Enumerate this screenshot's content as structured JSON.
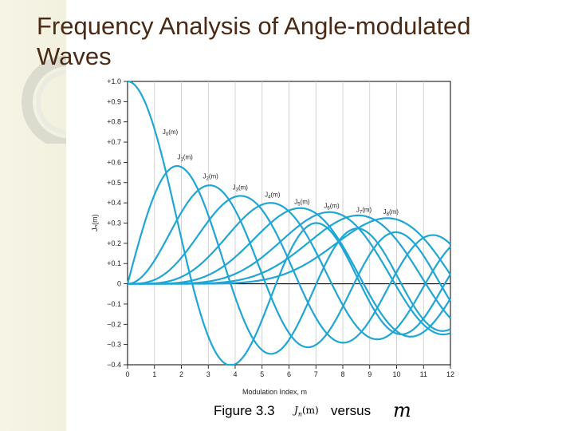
{
  "slide": {
    "title": "Frequency Analysis of Angle-modulated Waves",
    "caption": {
      "figure_label": "Figure 3.3",
      "math_term": "J",
      "math_sub": "n",
      "math_arg": "(m)",
      "versus": "versus",
      "math_var": "m"
    }
  },
  "colors": {
    "curve": "#1fa6d4",
    "title": "#4a2a14",
    "ring": "#d9d8cc",
    "background_strip": "#f3f1e0"
  },
  "chart_data": {
    "type": "line",
    "xlabel": "Modulation Index, m",
    "ylabel": "Jₙ(m)",
    "xlim": [
      0,
      12
    ],
    "ylim": [
      -0.4,
      1.0
    ],
    "x_ticks": [
      "0",
      "1",
      "2",
      "3",
      "4",
      "5",
      "6",
      "7",
      "8",
      "9",
      "10",
      "11",
      "12"
    ],
    "y_ticks": [
      {
        "v": 1.0,
        "label": "+1.0"
      },
      {
        "v": 0.9,
        "label": "+0.9"
      },
      {
        "v": 0.8,
        "label": "+0.8"
      },
      {
        "v": 0.7,
        "label": "+0.7"
      },
      {
        "v": 0.6,
        "label": "+0.6"
      },
      {
        "v": 0.5,
        "label": "+0.5"
      },
      {
        "v": 0.4,
        "label": "+0.4"
      },
      {
        "v": 0.3,
        "label": "+0.3"
      },
      {
        "v": 0.2,
        "label": "+0.2"
      },
      {
        "v": 0.1,
        "label": "+0.1"
      },
      {
        "v": 0.0,
        "label": "0"
      },
      {
        "v": -0.1,
        "label": "−0.1"
      },
      {
        "v": -0.2,
        "label": "−0.2"
      },
      {
        "v": -0.3,
        "label": "−0.3"
      },
      {
        "v": -0.4,
        "label": "−0.4"
      }
    ],
    "series": [
      {
        "name": "J0(m)",
        "order": 0,
        "label": {
          "base": "J",
          "sub": "0",
          "suffix": "(m)",
          "x": 1.3,
          "y": 0.74
        }
      },
      {
        "name": "J1(m)",
        "order": 1,
        "label": {
          "base": "J",
          "sub": "1",
          "suffix": "(m)",
          "x": 1.85,
          "y": 0.615
        }
      },
      {
        "name": "J2(m)",
        "order": 2,
        "label": {
          "base": "J",
          "sub": "2",
          "suffix": "(m)",
          "x": 2.8,
          "y": 0.52
        }
      },
      {
        "name": "J3(m)",
        "order": 3,
        "label": {
          "base": "J",
          "sub": "3",
          "suffix": "(m)",
          "x": 3.9,
          "y": 0.465
        }
      },
      {
        "name": "J4(m)",
        "order": 4,
        "label": {
          "base": "J",
          "sub": "4",
          "suffix": "(m)",
          "x": 5.1,
          "y": 0.43
        }
      },
      {
        "name": "J5(m)",
        "order": 5,
        "label": {
          "base": "J",
          "sub": "5",
          "suffix": "(m)",
          "x": 6.2,
          "y": 0.395
        }
      },
      {
        "name": "J6(m)",
        "order": 6,
        "label": {
          "base": "J",
          "sub": "6",
          "suffix": "(m)",
          "x": 7.3,
          "y": 0.375
        }
      },
      {
        "name": "J7(m)",
        "order": 7,
        "label": {
          "base": "J",
          "sub": "7",
          "suffix": "(m)",
          "x": 8.5,
          "y": 0.355
        }
      },
      {
        "name": "J8(m)",
        "order": 8,
        "label": {
          "base": "J",
          "sub": "8",
          "suffix": "(m)",
          "x": 9.5,
          "y": 0.345
        }
      }
    ],
    "grid": "vertical",
    "legend": "inline labels"
  }
}
